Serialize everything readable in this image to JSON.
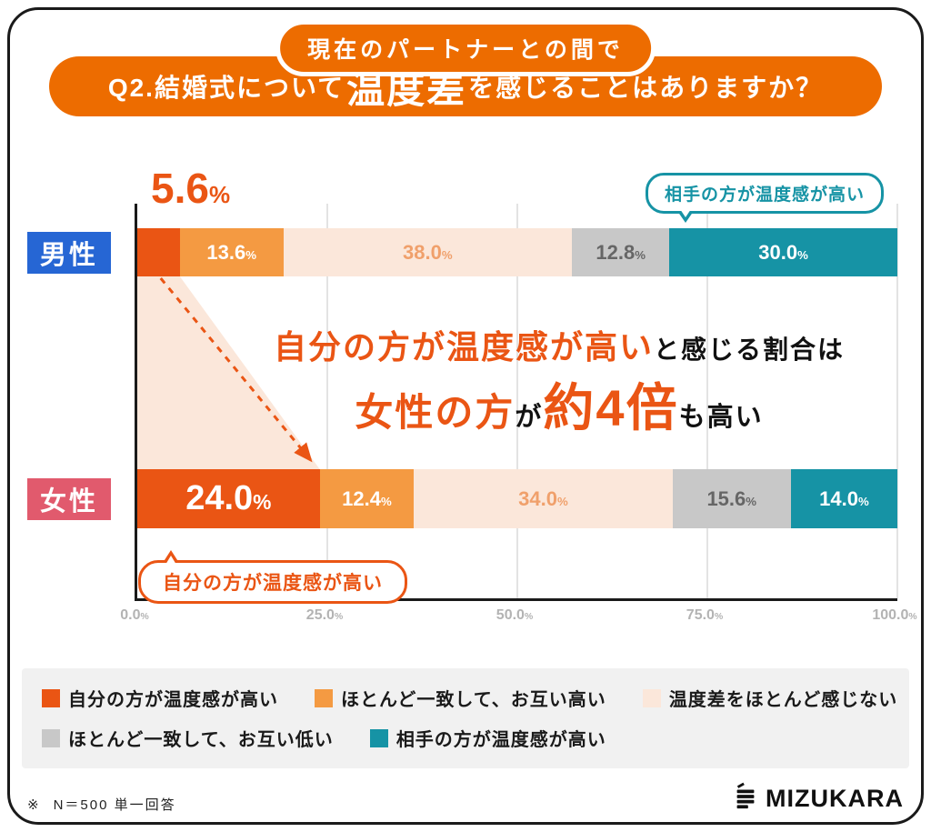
{
  "header": {
    "pill_label": "現在のパートナーとの間で",
    "q_prefix": "Q2.結婚式について",
    "q_emph": "温度差",
    "q_suffix": "を感じることはありますか？"
  },
  "chart_data": {
    "type": "bar",
    "orientation": "horizontal-stacked",
    "title": "Q2.結婚式について温度差を感じることはありますか？",
    "categories": [
      "男性",
      "女性"
    ],
    "category_colors": [
      "#2666D4",
      "#E15A6D"
    ],
    "series": [
      {
        "name": "自分の方が温度感が高い",
        "color": "#EA5514",
        "values": [
          5.6,
          24.0
        ]
      },
      {
        "name": "ほとんど一致して、お互い高い",
        "color": "#F49A42",
        "values": [
          13.6,
          12.4
        ]
      },
      {
        "name": "温度差をほとんど感じない",
        "color": "#FBE7DA",
        "values": [
          38.0,
          34.0
        ]
      },
      {
        "name": "ほとんど一致して、お互い低い",
        "color": "#C8C8C8",
        "values": [
          12.8,
          15.6
        ]
      },
      {
        "name": "相手の方が温度感が高い",
        "color": "#1693A5",
        "values": [
          30.0,
          14.0
        ]
      }
    ],
    "value_label_colors": [
      "#FFFFFF",
      "#FFFFFF",
      "#F0A06B",
      "#666666",
      "#FFFFFF"
    ],
    "x_ticks": [
      "0.0",
      "25.0",
      "50.0",
      "75.0",
      "100.0"
    ],
    "xlim": [
      0,
      100
    ],
    "grid": true,
    "legend_position": "bottom",
    "connector_color": "#FBE7DA",
    "arrow_color": "#EA5514"
  },
  "callouts": {
    "partner_higher": "相手の方が温度感が高い",
    "self_higher": "自分の方が温度感が高い"
  },
  "annotation": {
    "line1_orange": "自分の方が温度感が高い",
    "line1_black": "と感じる割合は",
    "line2_orange1": "女性の方",
    "line2_black1": "が",
    "line2_orange2": "約4倍",
    "line2_black2": "も高い"
  },
  "footer": {
    "note_mark": "※",
    "note_text": "N＝500 単一回答",
    "logo_text": "MIZUKARA"
  }
}
